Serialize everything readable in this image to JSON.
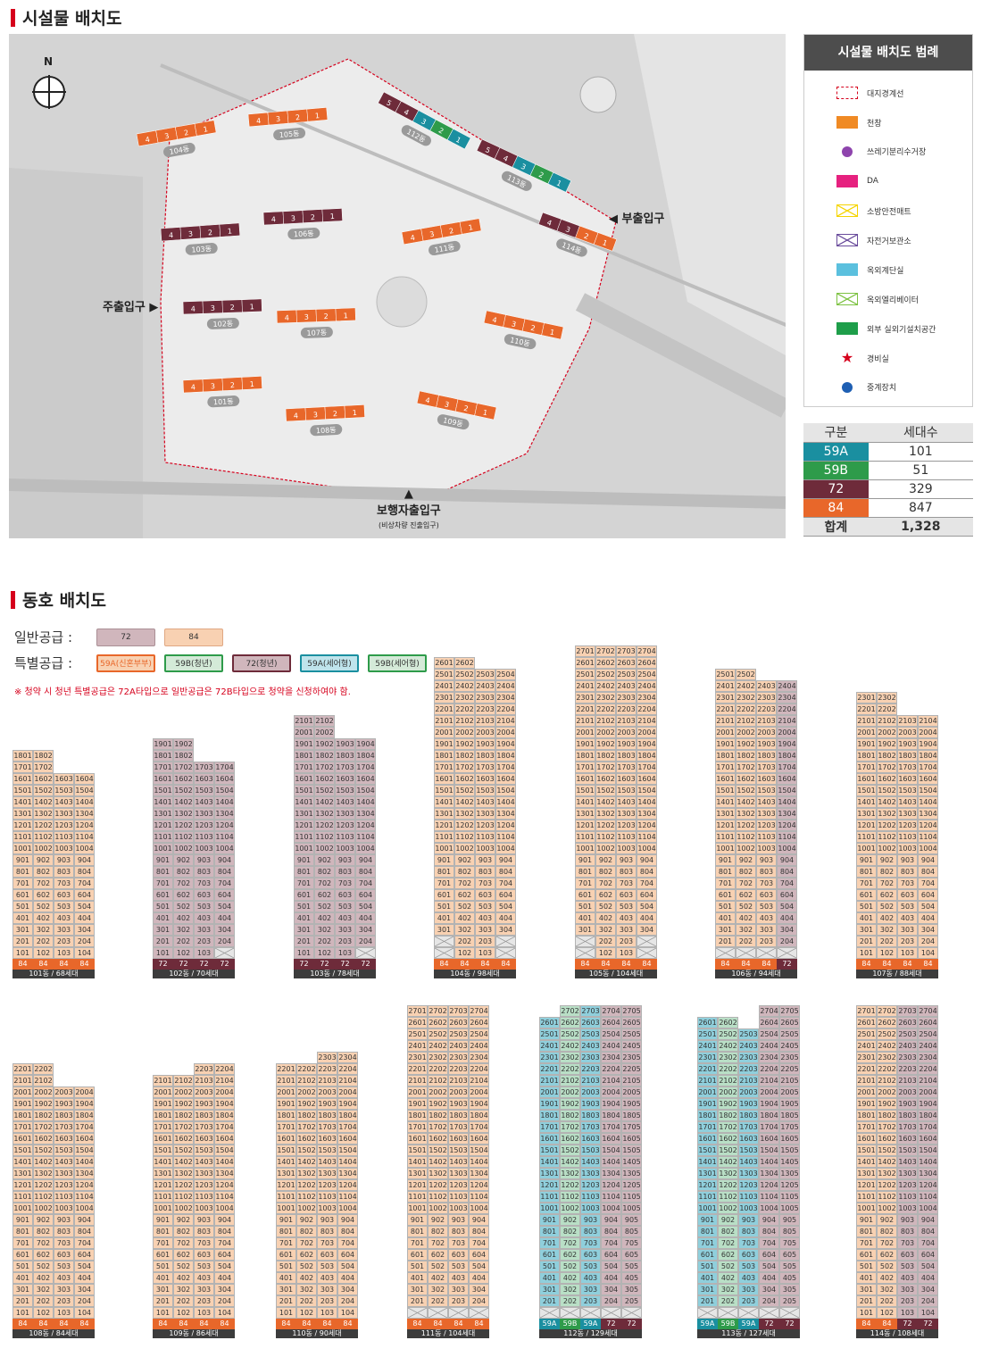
{
  "sections": {
    "facility": "시설물 배치도",
    "unit": "동호 배치도"
  },
  "map": {
    "north": "N",
    "main_entrance": "주출입구",
    "sub_entrance": "부출입구",
    "ped_entrance": "보행자출입구",
    "ped_sub": "(비상차량 진출입구)",
    "buildings": [
      {
        "name": "101동",
        "nums": [
          "4",
          "3",
          "2",
          "1"
        ]
      },
      {
        "name": "102동",
        "nums": [
          "4",
          "3",
          "2",
          "1"
        ]
      },
      {
        "name": "103동",
        "nums": [
          "4",
          "3",
          "2",
          "1"
        ]
      },
      {
        "name": "104동",
        "nums": [
          "4",
          "3",
          "2",
          "1"
        ]
      },
      {
        "name": "105동",
        "nums": [
          "4",
          "3",
          "2",
          "1"
        ]
      },
      {
        "name": "106동",
        "nums": [
          "4",
          "3",
          "2",
          "1"
        ]
      },
      {
        "name": "107동",
        "nums": [
          "4",
          "3",
          "2",
          "1"
        ]
      },
      {
        "name": "108동",
        "nums": [
          "4",
          "3",
          "2",
          "1"
        ]
      },
      {
        "name": "109동",
        "nums": [
          "4",
          "3",
          "2",
          "1"
        ]
      },
      {
        "name": "110동",
        "nums": [
          "4",
          "3",
          "2",
          "1"
        ]
      },
      {
        "name": "111동",
        "nums": [
          "4",
          "3",
          "2",
          "1"
        ]
      },
      {
        "name": "112동",
        "nums": [
          "5",
          "4",
          "3",
          "2",
          "1"
        ]
      },
      {
        "name": "113동",
        "nums": [
          "5",
          "4",
          "3",
          "2",
          "1"
        ]
      },
      {
        "name": "114동",
        "nums": [
          "4",
          "3",
          "2",
          "1"
        ]
      }
    ]
  },
  "legend": {
    "title": "시설물 배치도 범례",
    "items": [
      {
        "label": "대지경계선",
        "color": "#d6001c"
      },
      {
        "label": "천창",
        "color": "#f08a24"
      },
      {
        "label": "쓰레기분리수거장",
        "color": "#8e44ad"
      },
      {
        "label": "DA",
        "color": "#e6217f"
      },
      {
        "label": "소방안전매트",
        "color": "#f5d400"
      },
      {
        "label": "자전거보관소",
        "color": "#6a4c9c"
      },
      {
        "label": "옥외계단실",
        "color": "#5bc0de"
      },
      {
        "label": "옥외엘리베이터",
        "color": "#7dc242"
      },
      {
        "label": "외부 실외기설치공간",
        "color": "#1e9e4a"
      },
      {
        "label": "경비실",
        "color": "#d6001c"
      },
      {
        "label": "중계장치",
        "color": "#1e5fb3"
      }
    ]
  },
  "stats": {
    "headers": [
      "구분",
      "세대수"
    ],
    "rows": [
      {
        "type": "59A",
        "count": "101",
        "color": "#1a8fa0"
      },
      {
        "type": "59B",
        "count": "51",
        "color": "#2e9b4a"
      },
      {
        "type": "72",
        "count": "329",
        "color": "#6e2b3a"
      },
      {
        "type": "84",
        "count": "847",
        "color": "#e8672a"
      }
    ],
    "total_label": "합계",
    "total": "1,328"
  },
  "supply": {
    "general_label": "일반공급 :",
    "special_label": "특별공급 :",
    "general": [
      {
        "label": "72"
      },
      {
        "label": "84"
      }
    ],
    "special": [
      {
        "label": "59A(신혼부부)"
      },
      {
        "label": "59B(청년)"
      },
      {
        "label": "72(청년)"
      },
      {
        "label": "59A(세어형)"
      },
      {
        "label": "59B(세어형)"
      }
    ],
    "note": "※ 청약 시 청년 특별공급은 72A타입으로 일반공급은 72B타입으로 청약을 신청하여야 함."
  },
  "colors": {
    "c84": "#f8d1b2",
    "c72": "#d0b6bc",
    "c59A": "#8fcfdc",
    "c59B": "#b9dfc6",
    "f84": "#e8672a",
    "f72": "#6e2b3a",
    "f59A": "#1a8fa0",
    "f59B": "#2e9b4a"
  },
  "buildings": [
    {
      "name": "101동",
      "label": "101동 / 68세대",
      "floors": [
        18,
        18,
        16,
        16
      ],
      "types": [
        "84",
        "84",
        "84",
        "84"
      ],
      "footer": [
        "84",
        "84",
        "84",
        "84"
      ]
    },
    {
      "name": "102동",
      "label": "102동 / 70세대",
      "floors": [
        19,
        19,
        17,
        17
      ],
      "bottom": [
        1,
        1,
        1,
        2
      ],
      "types": [
        "72",
        "72",
        "72",
        "72"
      ],
      "footer": [
        "72",
        "72",
        "72",
        "72"
      ]
    },
    {
      "name": "103동",
      "label": "103동 / 78세대",
      "floors": [
        21,
        21,
        19,
        19
      ],
      "bottom": [
        1,
        1,
        1,
        2
      ],
      "types": [
        "72",
        "72",
        "72",
        "72"
      ],
      "footer": [
        "72",
        "72",
        "72",
        "72"
      ]
    },
    {
      "name": "104동",
      "label": "104동 / 98세대",
      "floors": [
        26,
        26,
        25,
        25
      ],
      "bottom": [
        3,
        1,
        1,
        3
      ],
      "types": [
        "84",
        "84",
        "84",
        "84"
      ],
      "footer": [
        "84",
        "84",
        "84",
        "84"
      ]
    },
    {
      "name": "105동",
      "label": "105동 / 104세대",
      "floors": [
        27,
        27,
        27,
        27
      ],
      "bottom": [
        3,
        1,
        1,
        3
      ],
      "types": [
        "84",
        "84",
        "84",
        "84"
      ],
      "footer": [
        "84",
        "84",
        "84",
        "84"
      ]
    },
    {
      "name": "106동",
      "label": "106동 / 94세대",
      "floors": [
        25,
        25,
        24,
        24
      ],
      "bottom": [
        2,
        2,
        2,
        2
      ],
      "types": [
        "84",
        "84",
        "84",
        "72"
      ],
      "footer": [
        "84",
        "84",
        "84",
        "72"
      ]
    },
    {
      "name": "107동",
      "label": "107동 / 88세대",
      "floors": [
        23,
        23,
        21,
        21
      ],
      "types": [
        "84",
        "84",
        "84",
        "84"
      ],
      "footer": [
        "84",
        "84",
        "84",
        "84"
      ]
    },
    {
      "name": "108동",
      "label": "108동 / 84세대",
      "floors": [
        22,
        22,
        20,
        20
      ],
      "types": [
        "84",
        "84",
        "84",
        "84"
      ],
      "footer": [
        "84",
        "84",
        "84",
        "84"
      ]
    },
    {
      "name": "109동",
      "label": "109동 / 86세대",
      "floors": [
        21,
        21,
        22,
        22
      ],
      "types": [
        "84",
        "84",
        "84",
        "84"
      ],
      "footer": [
        "84",
        "84",
        "84",
        "84"
      ]
    },
    {
      "name": "110동",
      "label": "110동 / 90세대",
      "floors": [
        22,
        22,
        23,
        23
      ],
      "types": [
        "84",
        "84",
        "84",
        "84"
      ],
      "footer": [
        "84",
        "84",
        "84",
        "84"
      ]
    },
    {
      "name": "111동",
      "label": "111동 / 104세대",
      "floors": [
        27,
        27,
        27,
        27
      ],
      "bottom": [
        2,
        2,
        2,
        2
      ],
      "types": [
        "84",
        "84",
        "84",
        "84"
      ],
      "footer": [
        "84",
        "84",
        "84",
        "84"
      ]
    },
    {
      "name": "112동",
      "label": "112동 / 129세대",
      "floors": [
        26,
        27,
        27,
        27,
        27
      ],
      "bottom": [
        2,
        2,
        2,
        2,
        2
      ],
      "types": [
        "59A",
        "59B",
        "59A",
        "72",
        "72"
      ],
      "footer": [
        "59A",
        "59B",
        "59A",
        "72",
        "72"
      ]
    },
    {
      "name": "113동",
      "label": "113동 / 127세대",
      "floors": [
        26,
        26,
        25,
        27,
        27
      ],
      "bottom": [
        2,
        2,
        2,
        2,
        2
      ],
      "types": [
        "59A",
        "59B",
        "59A",
        "72",
        "72"
      ],
      "footer": [
        "59A",
        "59B",
        "59A",
        "72",
        "72"
      ]
    },
    {
      "name": "114동",
      "label": "114동 / 108세대",
      "floors": [
        27,
        27,
        27,
        27
      ],
      "types": [
        "84",
        "84",
        "72",
        "72"
      ],
      "footer": [
        "84",
        "84",
        "72",
        "72"
      ]
    }
  ]
}
